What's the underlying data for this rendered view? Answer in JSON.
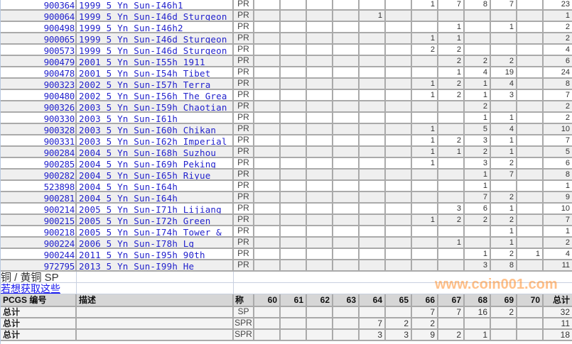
{
  "grade_columns": [
    "60",
    "61",
    "62",
    "63",
    "64",
    "65",
    "66",
    "67",
    "68",
    "69",
    "70"
  ],
  "rows": [
    {
      "code": "900364",
      "desc": "1999 5 Yn Sun-I46h1",
      "grade": "PR",
      "counts": [
        "",
        "",
        "",
        "",
        "",
        "",
        "1",
        "7",
        "8",
        "7",
        ""
      ],
      "total": "23"
    },
    {
      "code": "900064",
      "desc": "1999 5 Yn Sun-I46d Sturgeon",
      "grade": "PR",
      "counts": [
        "",
        "",
        "",
        "",
        "1",
        "",
        "",
        "",
        "",
        "",
        ""
      ],
      "total": "1"
    },
    {
      "code": "900498",
      "desc": "1999 5 Yn Sun-I46h2",
      "grade": "PR",
      "counts": [
        "",
        "",
        "",
        "",
        "",
        "",
        "",
        "1",
        "",
        "1",
        ""
      ],
      "total": "2"
    },
    {
      "code": "900065",
      "desc": "1999 5 Yn Sun-I46d Sturgeon",
      "grade": "PR",
      "counts": [
        "",
        "",
        "",
        "",
        "",
        "",
        "1",
        "1",
        "",
        "",
        ""
      ],
      "total": "2"
    },
    {
      "code": "900573",
      "desc": "1999 5 Yn Sun-I46d Sturgeon",
      "grade": "PR",
      "counts": [
        "",
        "",
        "",
        "",
        "",
        "",
        "2",
        "2",
        "",
        "",
        ""
      ],
      "total": "4"
    },
    {
      "code": "900479",
      "desc": "2001 5 Yn Sun-I55h 1911",
      "grade": "PR",
      "counts": [
        "",
        "",
        "",
        "",
        "",
        "",
        "",
        "2",
        "2",
        "2",
        ""
      ],
      "total": "6"
    },
    {
      "code": "900478",
      "desc": "2001 5 Yn Sun-I54h Tibet",
      "grade": "PR",
      "counts": [
        "",
        "",
        "",
        "",
        "",
        "",
        "",
        "1",
        "4",
        "19",
        ""
      ],
      "total": "24"
    },
    {
      "code": "900323",
      "desc": "2002 5 Yn Sun-I57h Terra",
      "grade": "PR",
      "counts": [
        "",
        "",
        "",
        "",
        "",
        "",
        "1",
        "2",
        "1",
        "4",
        ""
      ],
      "total": "8"
    },
    {
      "code": "900480",
      "desc": "2002 5 Yn Sun-I56h The Grea",
      "grade": "PR",
      "counts": [
        "",
        "",
        "",
        "",
        "",
        "",
        "1",
        "2",
        "1",
        "3",
        ""
      ],
      "total": "7"
    },
    {
      "code": "900326",
      "desc": "2003 5 Yn Sun-I59h Chaotian",
      "grade": "PR",
      "counts": [
        "",
        "",
        "",
        "",
        "",
        "",
        "",
        "",
        "2",
        "",
        ""
      ],
      "total": "2"
    },
    {
      "code": "900330",
      "desc": "2003 5 Yn Sun-I61h",
      "grade": "PR",
      "counts": [
        "",
        "",
        "",
        "",
        "",
        "",
        "",
        "",
        "1",
        "1",
        ""
      ],
      "total": "2"
    },
    {
      "code": "900328",
      "desc": "2003 5 Yn Sun-I60h Chikan",
      "grade": "PR",
      "counts": [
        "",
        "",
        "",
        "",
        "",
        "",
        "1",
        "",
        "5",
        "4",
        ""
      ],
      "total": "10"
    },
    {
      "code": "900331",
      "desc": "2003 5 Yn Sun-I62h Imperial",
      "grade": "PR",
      "counts": [
        "",
        "",
        "",
        "",
        "",
        "",
        "1",
        "2",
        "3",
        "1",
        ""
      ],
      "total": "7"
    },
    {
      "code": "900284",
      "desc": "2004 5 Yn Sun-I68h Suzhou",
      "grade": "PR",
      "counts": [
        "",
        "",
        "",
        "",
        "",
        "",
        "1",
        "1",
        "2",
        "1",
        ""
      ],
      "total": "5"
    },
    {
      "code": "900285",
      "desc": "2004 5 Yn Sun-I69h Peking",
      "grade": "PR",
      "counts": [
        "",
        "",
        "",
        "",
        "",
        "",
        "1",
        "",
        "3",
        "2",
        ""
      ],
      "total": "6"
    },
    {
      "code": "900282",
      "desc": "2004 5 Yn Sun-I65h Riyue",
      "grade": "PR",
      "counts": [
        "",
        "",
        "",
        "",
        "",
        "",
        "",
        "",
        "1",
        "7",
        ""
      ],
      "total": "8"
    },
    {
      "code": "523898",
      "desc": "2004 5 Yn Sun-I64h",
      "grade": "PR",
      "counts": [
        "",
        "",
        "",
        "",
        "",
        "",
        "",
        "",
        "1",
        "",
        ""
      ],
      "total": "1"
    },
    {
      "code": "900281",
      "desc": "2004 5 Yn Sun-I64h",
      "grade": "PR",
      "counts": [
        "",
        "",
        "",
        "",
        "",
        "",
        "",
        "",
        "7",
        "2",
        ""
      ],
      "total": "9"
    },
    {
      "code": "900214",
      "desc": "2005 5 Yn Sun-I71h Lijiang",
      "grade": "PR",
      "counts": [
        "",
        "",
        "",
        "",
        "",
        "",
        "",
        "3",
        "6",
        "1",
        ""
      ],
      "total": "10"
    },
    {
      "code": "900215",
      "desc": "2005 5 Yn Sun-I72h Green",
      "grade": "PR",
      "counts": [
        "",
        "",
        "",
        "",
        "",
        "",
        "1",
        "2",
        "2",
        "2",
        ""
      ],
      "total": "7"
    },
    {
      "code": "900218",
      "desc": "2005 5 Yn Sun-I74h Tower &",
      "grade": "PR",
      "counts": [
        "",
        "",
        "",
        "",
        "",
        "",
        "",
        "",
        "",
        "1",
        ""
      ],
      "total": "1"
    },
    {
      "code": "900224",
      "desc": "2006 5 Yn Sun-I78h Lg",
      "grade": "PR",
      "counts": [
        "",
        "",
        "",
        "",
        "",
        "",
        "",
        "1",
        "",
        "1",
        ""
      ],
      "total": "2"
    },
    {
      "code": "900244",
      "desc": "2011 5 Yn Sun-I95h 90th",
      "grade": "PR",
      "counts": [
        "",
        "",
        "",
        "",
        "",
        "",
        "",
        "",
        "1",
        "2",
        "1"
      ],
      "total": "4"
    },
    {
      "code": "972795",
      "desc": "2013 5 Yn Sun-I99h He",
      "grade": "PR",
      "counts": [
        "",
        "",
        "",
        "",
        "",
        "",
        "",
        "",
        "3",
        "8",
        ""
      ],
      "total": "11"
    }
  ],
  "section": {
    "title": "铜 / 黄铜 SP",
    "link": "若想获取这些"
  },
  "summary_header": {
    "code": "PCGS 编号",
    "desc": "描述",
    "grade": "称",
    "total": "总计"
  },
  "summary_rows": [
    {
      "label": "总计",
      "grade": "SP",
      "counts": [
        "",
        "",
        "",
        "",
        "",
        "",
        "7",
        "7",
        "16",
        "2",
        ""
      ],
      "total": "32"
    },
    {
      "label": "总计",
      "grade": "SPR",
      "counts": [
        "",
        "",
        "",
        "",
        "7",
        "2",
        "2",
        "",
        "",
        "",
        ""
      ],
      "total": "11"
    },
    {
      "label": "总计",
      "grade": "SPR",
      "counts": [
        "",
        "",
        "",
        "",
        "3",
        "3",
        "9",
        "2",
        "1",
        "",
        ""
      ],
      "total": "18"
    }
  ],
  "watermark": "www.coin001.com",
  "colors": {
    "link": "#2222cc",
    "grid": "#aaaaaa",
    "alt_row": "#efefef",
    "header_bg": "#d6d6d6",
    "watermark": "#ff8c28"
  }
}
